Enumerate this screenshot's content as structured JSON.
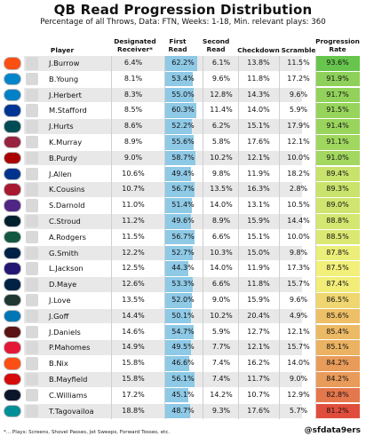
{
  "title": "QB Read Progression Distribution",
  "subtitle": "Percentage of all Throws, Data: FTN, Weeks: 1-18, Min. relevant plays: 360",
  "footnote": "*... Plays: Screens, Shovel Passes, Jet Sweeps, Forward Tosses, etc.",
  "handle": "@sfdata9ers",
  "colors": {
    "first_read_bar": "#8ec9e6",
    "zebra_row": "#e8e8e8",
    "progression_high": "#5ec24a",
    "progression_mid": "#f2f07a",
    "progression_low": "#e0483a"
  },
  "chart_data": {
    "type": "table",
    "columns": [
      "Player",
      "Designated Receiver*",
      "First Read",
      "Second Read",
      "Checkdown",
      "Scramble",
      "Progression Rate"
    ],
    "rows": [
      {
        "player": "J.Burrow",
        "team": "CIN",
        "designated": "6.4%",
        "first": "62.2%",
        "second": "6.1%",
        "checkdown": "13.8%",
        "scramble": "11.5%",
        "progression": "93.6%",
        "first_value": 62.2,
        "progression_value": 93.6
      },
      {
        "player": "B.Young",
        "team": "CAR",
        "designated": "8.1%",
        "first": "53.4%",
        "second": "9.6%",
        "checkdown": "11.8%",
        "scramble": "17.2%",
        "progression": "91.9%",
        "first_value": 53.4,
        "progression_value": 91.9
      },
      {
        "player": "J.Herbert",
        "team": "LAC",
        "designated": "8.3%",
        "first": "55.0%",
        "second": "12.8%",
        "checkdown": "14.3%",
        "scramble": "9.6%",
        "progression": "91.7%",
        "first_value": 55.0,
        "progression_value": 91.7
      },
      {
        "player": "M.Stafford",
        "team": "LAR",
        "designated": "8.5%",
        "first": "60.3%",
        "second": "11.4%",
        "checkdown": "14.0%",
        "scramble": "5.9%",
        "progression": "91.5%",
        "first_value": 60.3,
        "progression_value": 91.5
      },
      {
        "player": "J.Hurts",
        "team": "PHI",
        "designated": "8.6%",
        "first": "52.2%",
        "second": "6.2%",
        "checkdown": "15.1%",
        "scramble": "17.9%",
        "progression": "91.4%",
        "first_value": 52.2,
        "progression_value": 91.4
      },
      {
        "player": "K.Murray",
        "team": "ARI",
        "designated": "8.9%",
        "first": "55.6%",
        "second": "5.8%",
        "checkdown": "17.6%",
        "scramble": "12.1%",
        "progression": "91.1%",
        "first_value": 55.6,
        "progression_value": 91.1
      },
      {
        "player": "B.Purdy",
        "team": "SF",
        "designated": "9.0%",
        "first": "58.7%",
        "second": "10.2%",
        "checkdown": "12.1%",
        "scramble": "10.0%",
        "progression": "91.0%",
        "first_value": 58.7,
        "progression_value": 91.0
      },
      {
        "player": "J.Allen",
        "team": "BUF",
        "designated": "10.6%",
        "first": "49.4%",
        "second": "9.8%",
        "checkdown": "11.9%",
        "scramble": "18.2%",
        "progression": "89.4%",
        "first_value": 49.4,
        "progression_value": 89.4
      },
      {
        "player": "K.Cousins",
        "team": "ATL",
        "designated": "10.7%",
        "first": "56.7%",
        "second": "13.5%",
        "checkdown": "16.3%",
        "scramble": "2.8%",
        "progression": "89.3%",
        "first_value": 56.7,
        "progression_value": 89.3
      },
      {
        "player": "S.Darnold",
        "team": "MIN",
        "designated": "11.0%",
        "first": "51.4%",
        "second": "14.0%",
        "checkdown": "13.1%",
        "scramble": "10.5%",
        "progression": "89.0%",
        "first_value": 51.4,
        "progression_value": 89.0
      },
      {
        "player": "C.Stroud",
        "team": "HOU",
        "designated": "11.2%",
        "first": "49.6%",
        "second": "8.9%",
        "checkdown": "15.9%",
        "scramble": "14.4%",
        "progression": "88.8%",
        "first_value": 49.6,
        "progression_value": 88.8
      },
      {
        "player": "A.Rodgers",
        "team": "NYJ",
        "designated": "11.5%",
        "first": "56.7%",
        "second": "6.6%",
        "checkdown": "15.1%",
        "scramble": "10.0%",
        "progression": "88.5%",
        "first_value": 56.7,
        "progression_value": 88.5
      },
      {
        "player": "G.Smith",
        "team": "SEA",
        "designated": "12.2%",
        "first": "52.7%",
        "second": "10.3%",
        "checkdown": "15.0%",
        "scramble": "9.8%",
        "progression": "87.8%",
        "first_value": 52.7,
        "progression_value": 87.8
      },
      {
        "player": "L.Jackson",
        "team": "BAL",
        "designated": "12.5%",
        "first": "44.3%",
        "second": "14.0%",
        "checkdown": "11.9%",
        "scramble": "17.3%",
        "progression": "87.5%",
        "first_value": 44.3,
        "progression_value": 87.5
      },
      {
        "player": "D.Maye",
        "team": "NE",
        "designated": "12.6%",
        "first": "53.3%",
        "second": "6.6%",
        "checkdown": "11.8%",
        "scramble": "15.7%",
        "progression": "87.4%",
        "first_value": 53.3,
        "progression_value": 87.4
      },
      {
        "player": "J.Love",
        "team": "GB",
        "designated": "13.5%",
        "first": "52.0%",
        "second": "9.0%",
        "checkdown": "15.9%",
        "scramble": "9.6%",
        "progression": "86.5%",
        "first_value": 52.0,
        "progression_value": 86.5
      },
      {
        "player": "J.Goff",
        "team": "DET",
        "designated": "14.4%",
        "first": "50.1%",
        "second": "10.2%",
        "checkdown": "20.4%",
        "scramble": "4.9%",
        "progression": "85.6%",
        "first_value": 50.1,
        "progression_value": 85.6
      },
      {
        "player": "J.Daniels",
        "team": "WAS",
        "designated": "14.6%",
        "first": "54.7%",
        "second": "5.9%",
        "checkdown": "12.7%",
        "scramble": "12.1%",
        "progression": "85.4%",
        "first_value": 54.7,
        "progression_value": 85.4
      },
      {
        "player": "P.Mahomes",
        "team": "KC",
        "designated": "14.9%",
        "first": "49.5%",
        "second": "7.7%",
        "checkdown": "12.1%",
        "scramble": "15.7%",
        "progression": "85.1%",
        "first_value": 49.5,
        "progression_value": 85.1
      },
      {
        "player": "B.Nix",
        "team": "DEN",
        "designated": "15.8%",
        "first": "46.6%",
        "second": "7.4%",
        "checkdown": "16.2%",
        "scramble": "14.0%",
        "progression": "84.2%",
        "first_value": 46.6,
        "progression_value": 84.2
      },
      {
        "player": "B.Mayfield",
        "team": "TB",
        "designated": "15.8%",
        "first": "56.1%",
        "second": "7.4%",
        "checkdown": "11.7%",
        "scramble": "9.0%",
        "progression": "84.2%",
        "first_value": 56.1,
        "progression_value": 84.2
      },
      {
        "player": "C.Williams",
        "team": "CHI",
        "designated": "17.2%",
        "first": "45.1%",
        "second": "14.2%",
        "checkdown": "10.7%",
        "scramble": "12.9%",
        "progression": "82.8%",
        "first_value": 45.1,
        "progression_value": 82.8
      },
      {
        "player": "T.Tagovailoa",
        "team": "MIA",
        "designated": "18.8%",
        "first": "48.7%",
        "second": "9.3%",
        "checkdown": "17.6%",
        "scramble": "5.7%",
        "progression": "81.2%",
        "first_value": 48.7,
        "progression_value": 81.2
      }
    ],
    "team_colors": {
      "CIN": "#fb4f14",
      "CAR": "#0085ca",
      "LAC": "#0080c6",
      "LAR": "#003594",
      "PHI": "#004c54",
      "ARI": "#97233f",
      "SF": "#aa0000",
      "BUF": "#00338d",
      "ATL": "#a71930",
      "MIN": "#4f2683",
      "HOU": "#03202f",
      "NYJ": "#125740",
      "SEA": "#002244",
      "BAL": "#241773",
      "NE": "#002244",
      "GB": "#203731",
      "DET": "#0076b6",
      "WAS": "#5a1414",
      "KC": "#e31837",
      "DEN": "#fb4f14",
      "TB": "#d50a0a",
      "CHI": "#0b162a",
      "MIA": "#008e97"
    }
  }
}
